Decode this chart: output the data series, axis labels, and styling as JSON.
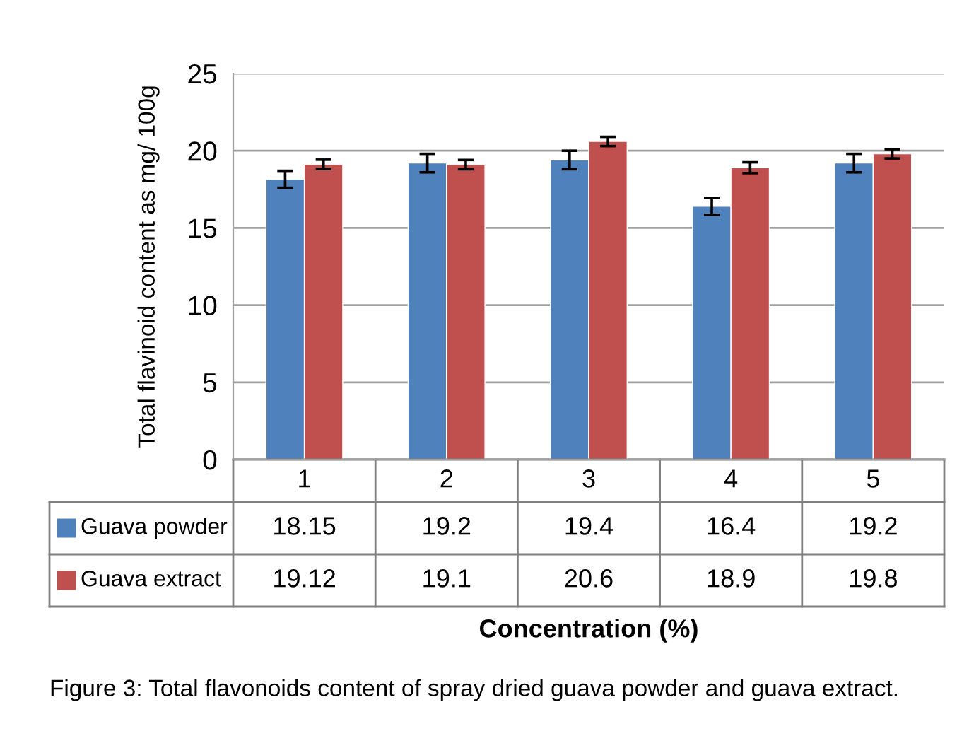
{
  "chart_data": {
    "type": "bar",
    "categories": [
      "1",
      "2",
      "3",
      "4",
      "5"
    ],
    "series": [
      {
        "name": "Guava powder",
        "color": "#4f81bd",
        "values": [
          18.15,
          19.2,
          19.4,
          16.4,
          19.2
        ],
        "errors": [
          0.55,
          0.6,
          0.6,
          0.55,
          0.6
        ]
      },
      {
        "name": "Guava extract",
        "color": "#c0504d",
        "values": [
          19.12,
          19.1,
          20.6,
          18.9,
          19.8
        ],
        "errors": [
          0.3,
          0.3,
          0.3,
          0.35,
          0.3
        ]
      }
    ],
    "ylim": [
      0,
      25
    ],
    "yticks": [
      0,
      5,
      10,
      15,
      20,
      25
    ],
    "grid": "y",
    "legend": "bottom",
    "data_labels": true,
    "ylabel": "Total flavinoid content as mg/ 100g",
    "annotations": [
      "Concentration (%)",
      "Figure 3: Total flavonoids content of spray dried guava powder and guava extract."
    ]
  }
}
